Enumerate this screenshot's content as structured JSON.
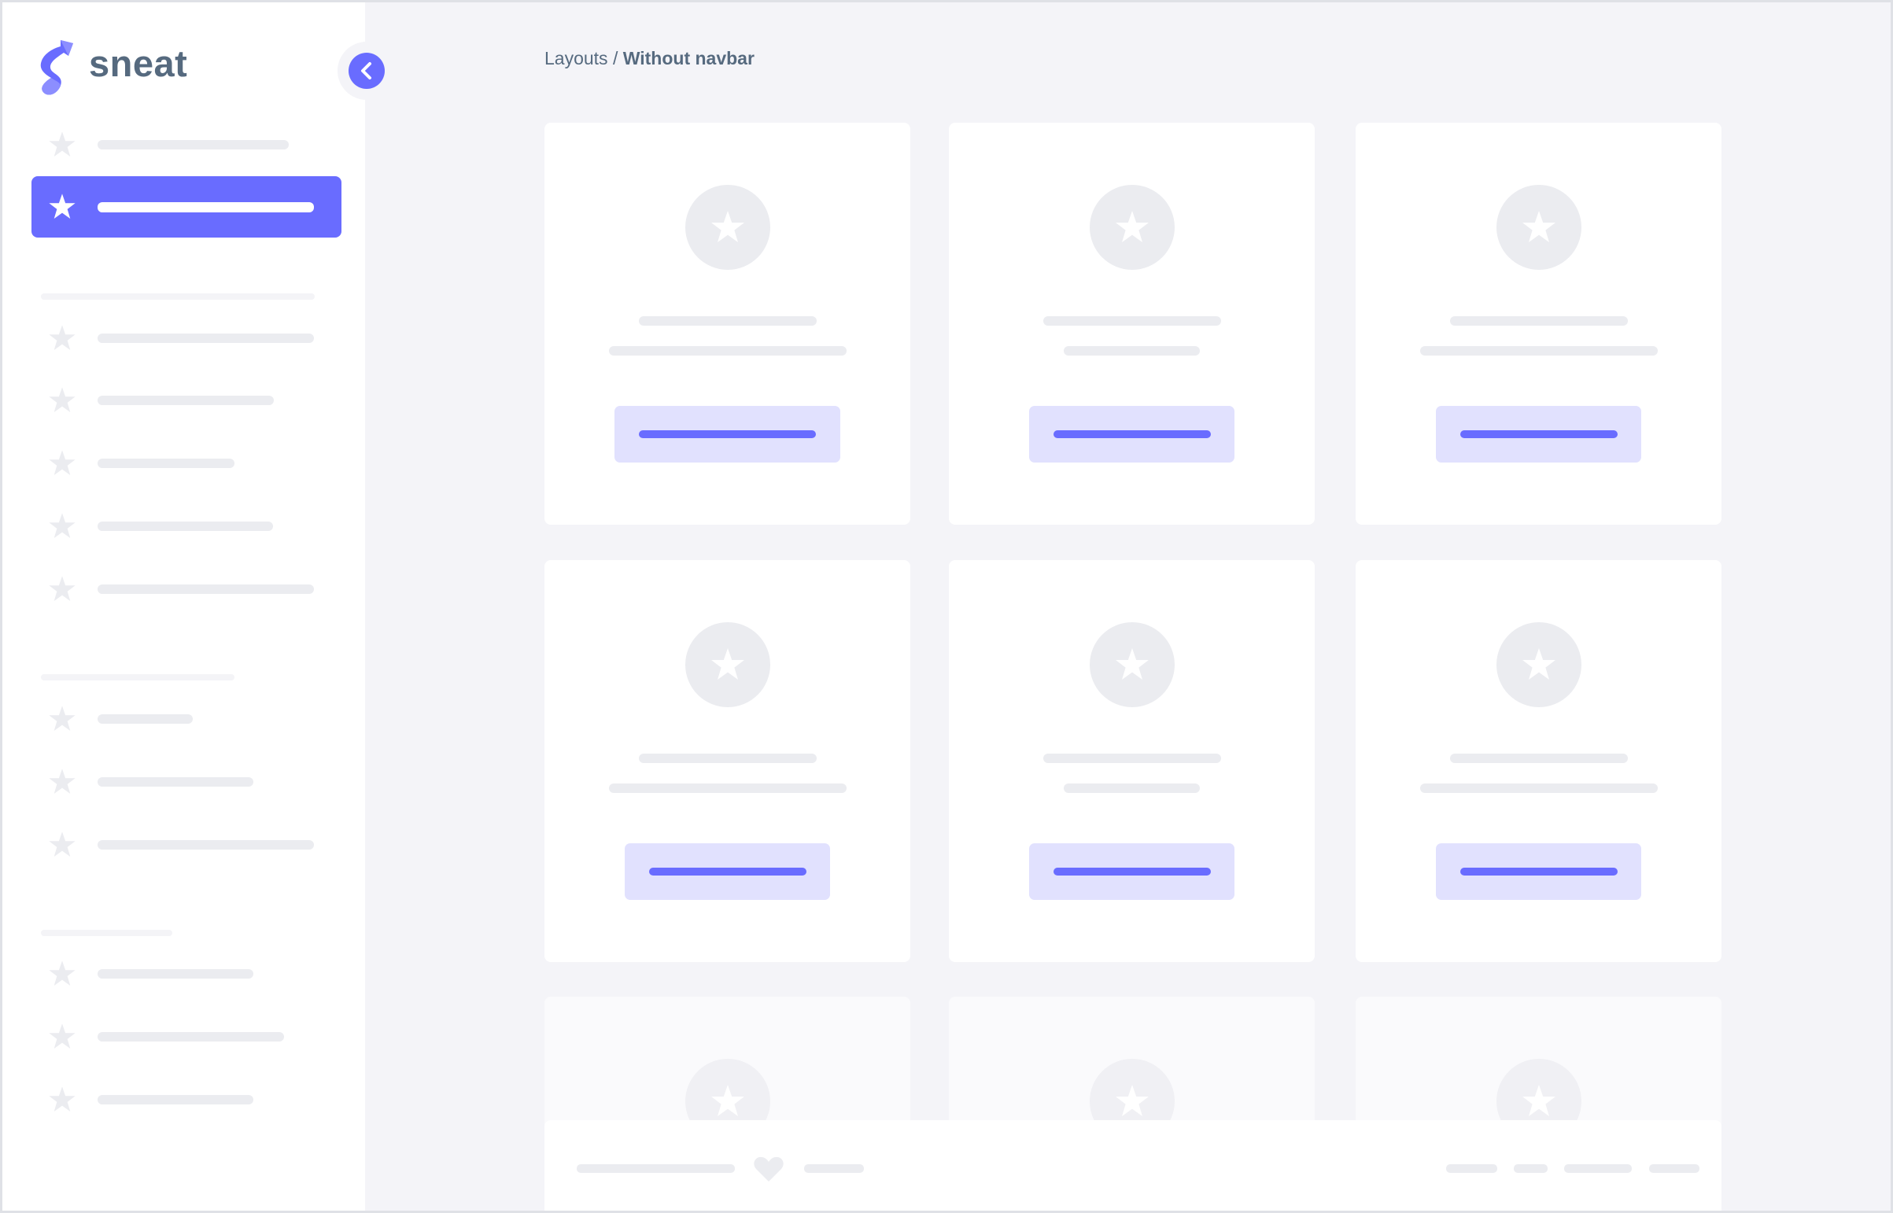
{
  "brand": {
    "name": "sneat",
    "logo_icon": "sneat-logo",
    "color": "#696cff"
  },
  "sidebar": {
    "collapse_icon": "chevron-left-icon",
    "item_icon": "star-icon",
    "active_index": 1
  },
  "breadcrumb": {
    "parent": "Layouts",
    "separator": " / ",
    "current": "Without navbar"
  },
  "cards": {
    "icon": "star-icon",
    "count": 9
  },
  "footer": {
    "icon": "heart-icon"
  },
  "colors": {
    "primary": "#696cff",
    "primary_light": "#e1e1fe",
    "background": "#f4f4f8",
    "skeleton": "#ebecf0",
    "text": "#566a7f"
  }
}
